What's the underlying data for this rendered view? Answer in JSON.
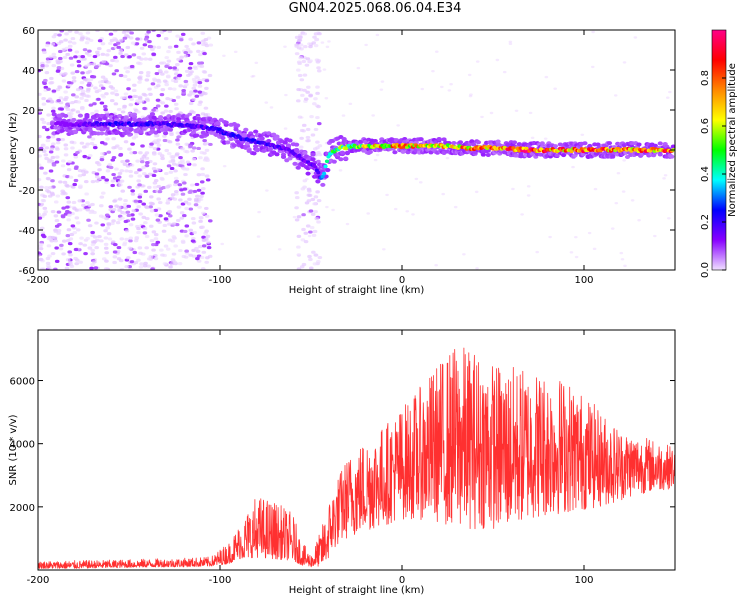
{
  "figure_title": "GN04.2025.068.06.04.E34",
  "chart_data": [
    {
      "type": "heatmap",
      "title": "GN04.2025.068.06.04.E34",
      "xlabel": "Height of straight line (km)",
      "ylabel": "Frequency (Hz)",
      "xlim": [
        -200,
        150
      ],
      "ylim": [
        -60,
        60
      ],
      "xticks": [
        -200,
        -100,
        0,
        100
      ],
      "yticks": [
        -60,
        -40,
        -20,
        0,
        20,
        40,
        60
      ],
      "xtick_labels": [
        "-200",
        "-100",
        "0",
        "100"
      ],
      "ytick_labels": [
        "-60",
        "-40",
        "-20",
        "0",
        "20",
        "40",
        "60"
      ],
      "colorbar": {
        "label": "Normalized spectral amplitude",
        "range": [
          0.0,
          1.0
        ],
        "ticks": [
          0.0,
          0.2,
          0.4,
          0.6,
          0.8
        ],
        "tick_labels": [
          "0.0",
          "0.2",
          "0.4",
          "0.6",
          "0.8"
        ],
        "colors": [
          "#f0e0ff",
          "#8800ff",
          "#0000ff",
          "#00ffff",
          "#00ff00",
          "#ffff00",
          "#ff8800",
          "#ff0000",
          "#ff0088"
        ]
      },
      "ridge": {
        "x": [
          -195,
          -175,
          -160,
          -145,
          -130,
          -115,
          -105,
          -95,
          -85,
          -75,
          -65,
          -55,
          -48,
          -44,
          -40,
          -35,
          -25,
          -15,
          -5,
          5,
          15,
          25,
          35,
          50,
          70,
          90,
          110,
          130,
          150
        ],
        "frequency": [
          13,
          13,
          13,
          13,
          13,
          12,
          11,
          8,
          5,
          3,
          1,
          -4,
          -8,
          -15,
          -2,
          1,
          2,
          2,
          2,
          2,
          2,
          2,
          1,
          1,
          0,
          0,
          0,
          0,
          0
        ],
        "amplitude": [
          0.05,
          0.15,
          0.22,
          0.22,
          0.2,
          0.18,
          0.2,
          0.22,
          0.25,
          0.2,
          0.18,
          0.15,
          0.18,
          0.3,
          0.45,
          0.55,
          0.6,
          0.7,
          0.75,
          0.75,
          0.7,
          0.7,
          0.75,
          0.85,
          0.9,
          0.85,
          0.85,
          0.85,
          0.85
        ]
      },
      "noise_regions": [
        {
          "x_range": [
            -200,
            -105
          ],
          "freq_range": [
            -60,
            60
          ],
          "amplitude": 0.05
        },
        {
          "x_range": [
            -58,
            -45
          ],
          "freq_range": [
            -60,
            60
          ],
          "amplitude": 0.02
        }
      ]
    },
    {
      "type": "line",
      "xlabel": "Height of straight line (km)",
      "ylabel": "SNR (10 * v/v)",
      "xlim": [
        -200,
        150
      ],
      "ylim": [
        0,
        7600
      ],
      "xticks": [
        -200,
        -100,
        0,
        100
      ],
      "yticks": [
        2000,
        4000,
        6000
      ],
      "xtick_labels": [
        "-200",
        "-100",
        "0",
        "100"
      ],
      "ytick_labels": [
        "2000",
        "4000",
        "6000"
      ],
      "series": [
        {
          "name": "SNR",
          "color": "#ff3030",
          "envelope_x": [
            -200,
            -180,
            -160,
            -140,
            -120,
            -105,
            -95,
            -90,
            -80,
            -70,
            -60,
            -55,
            -50,
            -45,
            -40,
            -35,
            -30,
            -20,
            -10,
            0,
            10,
            20,
            30,
            40,
            50,
            60,
            70,
            80,
            90,
            100,
            110,
            120,
            130,
            140,
            150
          ],
          "envelope_lo": [
            50,
            50,
            70,
            90,
            100,
            120,
            200,
            350,
            400,
            350,
            300,
            150,
            100,
            120,
            400,
            800,
            1000,
            1200,
            1400,
            1600,
            1600,
            1500,
            1300,
            1300,
            1300,
            1300,
            1600,
            1700,
            1800,
            1900,
            2000,
            2200,
            2400,
            2500,
            2600
          ],
          "envelope_hi": [
            280,
            300,
            320,
            350,
            380,
            420,
            900,
            1400,
            2400,
            2200,
            1800,
            900,
            500,
            1200,
            2200,
            3000,
            3600,
            4200,
            4600,
            5200,
            5800,
            6600,
            7200,
            7000,
            6600,
            6500,
            6400,
            6300,
            6100,
            5600,
            5000,
            4500,
            4300,
            4100,
            3900
          ]
        }
      ]
    }
  ]
}
